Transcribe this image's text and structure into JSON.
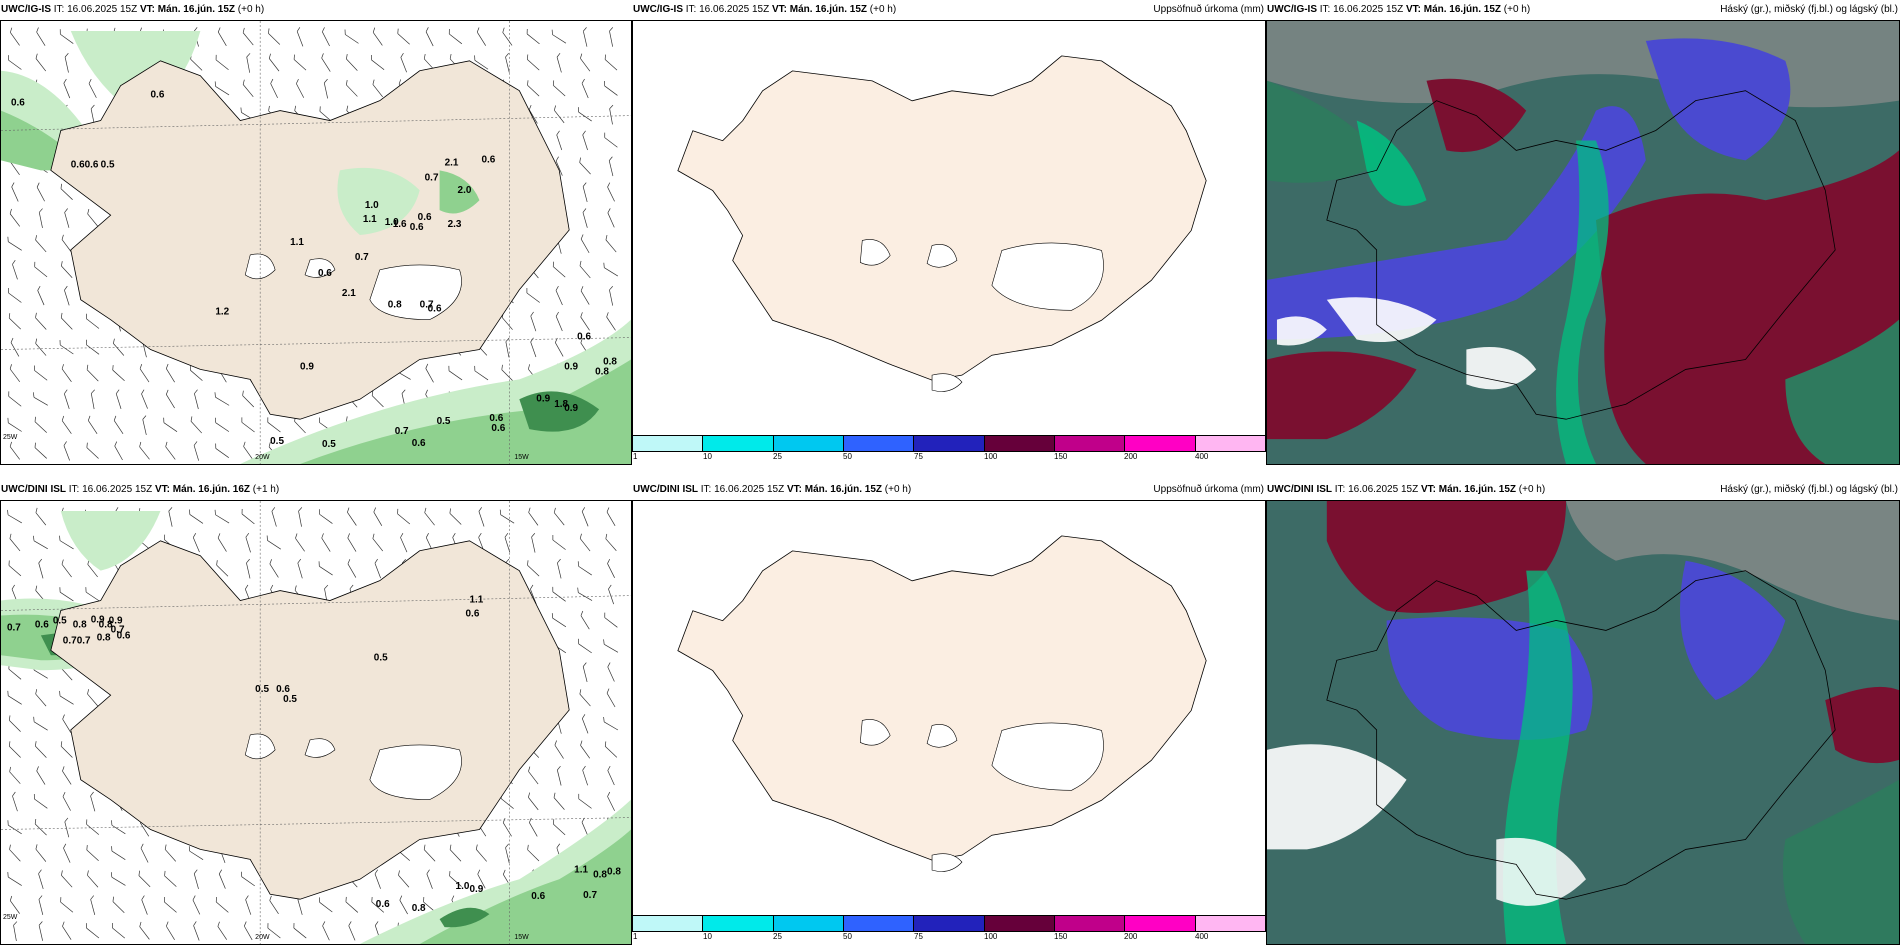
{
  "panels": [
    {
      "id": "p1",
      "model": "UWC/IG-IS",
      "it_label": "IT: 16.06.2025 15Z",
      "vt_label": "VT: Mán. 16.jún. 15Z",
      "lead": "(+0 h)",
      "title_right": "",
      "values": [
        {
          "t": "0.6"
        },
        {
          "t": "0.6"
        },
        {
          "t": "0.60.6"
        },
        {
          "t": "0.5"
        },
        {
          "t": "2.1"
        },
        {
          "t": "0.6"
        },
        {
          "t": "0.7"
        },
        {
          "t": "2.0"
        },
        {
          "t": "1.0"
        },
        {
          "t": "1.1"
        },
        {
          "t": "1.0"
        },
        {
          "t": "1.6"
        },
        {
          "t": "0.6"
        },
        {
          "t": "0.6"
        },
        {
          "t": "2.3"
        },
        {
          "t": "1.1"
        },
        {
          "t": "0.7"
        },
        {
          "t": "0.6"
        },
        {
          "t": "2.1"
        },
        {
          "t": "1.2"
        },
        {
          "t": "0.8"
        },
        {
          "t": "0.7"
        },
        {
          "t": "0.6"
        },
        {
          "t": "0.9"
        },
        {
          "t": "0.6"
        },
        {
          "t": "0.9"
        },
        {
          "t": "0.8"
        },
        {
          "t": "0.8"
        },
        {
          "t": "0.9"
        },
        {
          "t": "1.8"
        },
        {
          "t": "0.5"
        },
        {
          "t": "0.7"
        },
        {
          "t": "0.6"
        },
        {
          "t": "0.5"
        },
        {
          "t": "0.5"
        },
        {
          "t": "0.6"
        },
        {
          "t": "0.6"
        },
        {
          "t": "0.9"
        }
      ],
      "axes": {
        "lon_20": "20W",
        "lon_15": "15W",
        "lat_66": "66N",
        "lat_64": "64N",
        "lon_25": "25W"
      }
    },
    {
      "id": "p2",
      "model": "UWC/IG-IS",
      "it_label": "IT: 16.06.2025 15Z",
      "vt_label": "VT: Mán. 16.jún. 15Z",
      "lead": "(+0 h)",
      "title_right": "Uppsöfnuð úrkoma (mm)",
      "colorbar": {
        "colors": [
          "#bff8f8",
          "#00eaea",
          "#00c8f0",
          "#2f62ff",
          "#2222bb",
          "#66003a",
          "#c0008a",
          "#ff00c4",
          "#ffb6f2"
        ],
        "ticks": [
          "1",
          "10",
          "25",
          "50",
          "75",
          "100",
          "150",
          "200",
          "400"
        ]
      }
    },
    {
      "id": "p3",
      "model": "UWC/IG-IS",
      "it_label": "IT: 16.06.2025 15Z",
      "vt_label": "VT: Mán. 16.jún. 15Z",
      "lead": "(+0 h)",
      "title_right": "Háský (gr.), miðský (fj.bl.) og lágský (bl.)"
    },
    {
      "id": "p4",
      "model": "UWC/DINI ISL",
      "it_label": "IT: 16.06.2025 15Z",
      "vt_label": "VT: Mán. 16.jún. 16Z",
      "lead": "(+1 h)",
      "title_right": "",
      "values": [
        {
          "t": "0.7"
        },
        {
          "t": "0.6"
        },
        {
          "t": "0.5"
        },
        {
          "t": "0.8"
        },
        {
          "t": "0.9"
        },
        {
          "t": "0.8"
        },
        {
          "t": "0.9"
        },
        {
          "t": "0.7"
        },
        {
          "t": "0.7"
        },
        {
          "t": "0.8"
        },
        {
          "t": "0.6"
        },
        {
          "t": "0.7"
        },
        {
          "t": "1.1"
        },
        {
          "t": "0.6"
        },
        {
          "t": "0.5"
        },
        {
          "t": "0.5"
        },
        {
          "t": "0.6"
        },
        {
          "t": "0.5"
        },
        {
          "t": "1.0"
        },
        {
          "t": "0.9"
        },
        {
          "t": "0.8"
        },
        {
          "t": "0.6"
        },
        {
          "t": "1.1"
        },
        {
          "t": "0.8"
        },
        {
          "t": "0.8"
        },
        {
          "t": "0.7"
        },
        {
          "t": "0.6"
        }
      ],
      "axes": {
        "lon_20": "20W",
        "lon_15": "15W",
        "lat_66": "66N",
        "lat_64": "64N",
        "lon_25": "25W"
      }
    },
    {
      "id": "p5",
      "model": "UWC/DINI ISL",
      "it_label": "IT: 16.06.2025 15Z",
      "vt_label": "VT: Mán. 16.jún. 15Z",
      "lead": "(+0 h)",
      "title_right": "Uppsöfnuð úrkoma (mm)",
      "colorbar": {
        "colors": [
          "#bff8f8",
          "#00eaea",
          "#00c8f0",
          "#2f62ff",
          "#2222bb",
          "#66003a",
          "#c0008a",
          "#ff00c4",
          "#ffb6f2"
        ],
        "ticks": [
          "1",
          "10",
          "25",
          "50",
          "75",
          "100",
          "150",
          "200",
          "400"
        ]
      }
    },
    {
      "id": "p6",
      "model": "UWC/DINI ISL",
      "it_label": "IT: 16.06.2025 15Z",
      "vt_label": "VT: Mán. 16.jún. 15Z",
      "lead": "(+0 h)",
      "title_right": "Háský (gr.), miðský (fj.bl.) og lágský (bl.)"
    }
  ],
  "colors": {
    "land": "#f1e6d8",
    "land_plain": "#fbeee2",
    "green_light": "#c9edc9",
    "green_mid": "#8fd18f",
    "green_dark": "#3f8f4f",
    "cloud_high": "#8d8d8d",
    "cloud_mid": "#2a2ab0",
    "cloud_low": "#00a070",
    "cloud_red": "#7a1030"
  }
}
